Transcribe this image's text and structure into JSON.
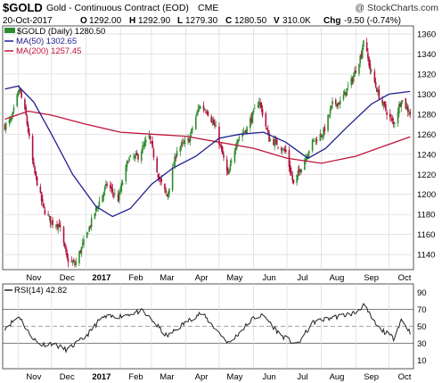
{
  "header": {
    "symbol": "$GOLD",
    "name": "Gold - Continuous Contract (EOD)",
    "exchange": "CME",
    "watermark": "@ StockCharts.com",
    "date": "20-Oct-2017",
    "open_label": "O",
    "open": "1292.00",
    "high_label": "H",
    "high": "1292.90",
    "low_label": "L",
    "low": "1279.30",
    "close_label": "C",
    "close": "1280.50",
    "volume_label": "V",
    "volume": "310.0K",
    "change_label": "Chg",
    "change": "-9.50 (-0.74%)"
  },
  "legend": {
    "price": "$GOLD (Daily) 1280.50",
    "ma50": "MA(50) 1302.65",
    "ma200": "MA(200) 1257.45",
    "rsi": "RSI(14) 42.82"
  },
  "colors": {
    "up": "#2e8b2e",
    "down": "#b0103a",
    "ma50": "#1f1f8f",
    "ma200": "#c0143c",
    "rsi": "#222222",
    "grid": "#d8d8d8",
    "frame": "#555555"
  },
  "chart_data": [
    {
      "type": "candlestick",
      "title": "Gold - Continuous Contract (EOD)",
      "x_tick_labels": [
        "Nov",
        "Dec",
        "2017",
        "Feb",
        "Mar",
        "Apr",
        "May",
        "Jun",
        "Jul",
        "Aug",
        "Sep",
        "Oct"
      ],
      "y_ticks": [
        1140,
        1160,
        1180,
        1200,
        1220,
        1240,
        1260,
        1280,
        1300,
        1320,
        1340,
        1360
      ],
      "ylim": [
        1125,
        1368
      ],
      "grid": true,
      "close_path": [
        {
          "x": "2016-10-20",
          "y": 1268
        },
        {
          "x": "2016-10-26",
          "y": 1275
        },
        {
          "x": "2016-11-02",
          "y": 1305
        },
        {
          "x": "2016-11-08",
          "y": 1278
        },
        {
          "x": "2016-11-15",
          "y": 1225
        },
        {
          "x": "2016-11-24",
          "y": 1185
        },
        {
          "x": "2016-12-01",
          "y": 1172
        },
        {
          "x": "2016-12-08",
          "y": 1170
        },
        {
          "x": "2016-12-15",
          "y": 1135
        },
        {
          "x": "2016-12-22",
          "y": 1130
        },
        {
          "x": "2016-12-30",
          "y": 1152
        },
        {
          "x": "2017-01-10",
          "y": 1185
        },
        {
          "x": "2017-01-20",
          "y": 1210
        },
        {
          "x": "2017-01-30",
          "y": 1195
        },
        {
          "x": "2017-02-08",
          "y": 1235
        },
        {
          "x": "2017-02-17",
          "y": 1238
        },
        {
          "x": "2017-02-27",
          "y": 1258
        },
        {
          "x": "2017-03-08",
          "y": 1215
        },
        {
          "x": "2017-03-15",
          "y": 1198
        },
        {
          "x": "2017-03-24",
          "y": 1245
        },
        {
          "x": "2017-04-04",
          "y": 1255
        },
        {
          "x": "2017-04-13",
          "y": 1288
        },
        {
          "x": "2017-04-20",
          "y": 1284
        },
        {
          "x": "2017-04-28",
          "y": 1265
        },
        {
          "x": "2017-05-09",
          "y": 1218
        },
        {
          "x": "2017-05-17",
          "y": 1255
        },
        {
          "x": "2017-05-26",
          "y": 1266
        },
        {
          "x": "2017-06-06",
          "y": 1294
        },
        {
          "x": "2017-06-15",
          "y": 1255
        },
        {
          "x": "2017-06-23",
          "y": 1250
        },
        {
          "x": "2017-06-30",
          "y": 1242
        },
        {
          "x": "2017-07-07",
          "y": 1210
        },
        {
          "x": "2017-07-14",
          "y": 1228
        },
        {
          "x": "2017-07-24",
          "y": 1252
        },
        {
          "x": "2017-08-03",
          "y": 1262
        },
        {
          "x": "2017-08-11",
          "y": 1290
        },
        {
          "x": "2017-08-18",
          "y": 1292
        },
        {
          "x": "2017-08-29",
          "y": 1315
        },
        {
          "x": "2017-09-06",
          "y": 1340
        },
        {
          "x": "2017-09-08",
          "y": 1355
        },
        {
          "x": "2017-09-14",
          "y": 1325
        },
        {
          "x": "2017-09-22",
          "y": 1298
        },
        {
          "x": "2017-09-29",
          "y": 1282
        },
        {
          "x": "2017-10-05",
          "y": 1270
        },
        {
          "x": "2017-10-12",
          "y": 1295
        },
        {
          "x": "2017-10-20",
          "y": 1280.5
        }
      ],
      "series": [
        {
          "name": "MA(50)",
          "points": [
            {
              "x": "2016-10-20",
              "y": 1305
            },
            {
              "x": "2016-11-01",
              "y": 1308
            },
            {
              "x": "2016-11-15",
              "y": 1292
            },
            {
              "x": "2016-12-01",
              "y": 1260
            },
            {
              "x": "2016-12-20",
              "y": 1220
            },
            {
              "x": "2017-01-10",
              "y": 1188
            },
            {
              "x": "2017-01-25",
              "y": 1178
            },
            {
              "x": "2017-02-10",
              "y": 1186
            },
            {
              "x": "2017-03-01",
              "y": 1210
            },
            {
              "x": "2017-03-20",
              "y": 1226
            },
            {
              "x": "2017-04-10",
              "y": 1238
            },
            {
              "x": "2017-05-01",
              "y": 1256
            },
            {
              "x": "2017-05-20",
              "y": 1260
            },
            {
              "x": "2017-06-10",
              "y": 1262
            },
            {
              "x": "2017-06-30",
              "y": 1252
            },
            {
              "x": "2017-07-20",
              "y": 1236
            },
            {
              "x": "2017-08-05",
              "y": 1246
            },
            {
              "x": "2017-08-25",
              "y": 1268
            },
            {
              "x": "2017-09-15",
              "y": 1290
            },
            {
              "x": "2017-10-01",
              "y": 1300
            },
            {
              "x": "2017-10-20",
              "y": 1302.65
            }
          ]
        },
        {
          "name": "MA(200)",
          "points": [
            {
              "x": "2016-10-20",
              "y": 1275
            },
            {
              "x": "2016-11-10",
              "y": 1283
            },
            {
              "x": "2016-12-01",
              "y": 1279
            },
            {
              "x": "2017-01-01",
              "y": 1270
            },
            {
              "x": "2017-02-01",
              "y": 1262
            },
            {
              "x": "2017-03-01",
              "y": 1260
            },
            {
              "x": "2017-04-01",
              "y": 1258
            },
            {
              "x": "2017-05-01",
              "y": 1252
            },
            {
              "x": "2017-06-01",
              "y": 1246
            },
            {
              "x": "2017-07-01",
              "y": 1236
            },
            {
              "x": "2017-08-01",
              "y": 1231
            },
            {
              "x": "2017-09-01",
              "y": 1238
            },
            {
              "x": "2017-10-01",
              "y": 1250
            },
            {
              "x": "2017-10-20",
              "y": 1257.45
            }
          ]
        }
      ]
    },
    {
      "type": "line",
      "title": "RSI(14) 42.82",
      "y_ticks": [
        10,
        30,
        50,
        70,
        90
      ],
      "ylim": [
        0,
        100
      ],
      "reference_lines": [
        30,
        50,
        70
      ],
      "x_tick_labels": [
        "Nov",
        "Dec",
        "2017",
        "Feb",
        "Mar",
        "Apr",
        "May",
        "Jun",
        "Jul",
        "Aug",
        "Sep",
        "Oct"
      ],
      "series": [
        {
          "name": "RSI(14)",
          "points": [
            {
              "x": "2016-10-20",
              "y": 48
            },
            {
              "x": "2016-11-02",
              "y": 62
            },
            {
              "x": "2016-11-09",
              "y": 45
            },
            {
              "x": "2016-11-20",
              "y": 28
            },
            {
              "x": "2016-12-01",
              "y": 30
            },
            {
              "x": "2016-12-15",
              "y": 22
            },
            {
              "x": "2017-01-01",
              "y": 38
            },
            {
              "x": "2017-01-15",
              "y": 60
            },
            {
              "x": "2017-02-01",
              "y": 62
            },
            {
              "x": "2017-02-20",
              "y": 68
            },
            {
              "x": "2017-03-01",
              "y": 58
            },
            {
              "x": "2017-03-15",
              "y": 38
            },
            {
              "x": "2017-04-01",
              "y": 55
            },
            {
              "x": "2017-04-15",
              "y": 66
            },
            {
              "x": "2017-05-01",
              "y": 42
            },
            {
              "x": "2017-05-10",
              "y": 30
            },
            {
              "x": "2017-06-01",
              "y": 60
            },
            {
              "x": "2017-06-10",
              "y": 63
            },
            {
              "x": "2017-06-25",
              "y": 40
            },
            {
              "x": "2017-07-10",
              "y": 28
            },
            {
              "x": "2017-07-25",
              "y": 55
            },
            {
              "x": "2017-08-10",
              "y": 60
            },
            {
              "x": "2017-09-01",
              "y": 66
            },
            {
              "x": "2017-09-08",
              "y": 75
            },
            {
              "x": "2017-09-20",
              "y": 50
            },
            {
              "x": "2017-10-05",
              "y": 36
            },
            {
              "x": "2017-10-12",
              "y": 58
            },
            {
              "x": "2017-10-20",
              "y": 42.82
            }
          ]
        }
      ]
    }
  ]
}
